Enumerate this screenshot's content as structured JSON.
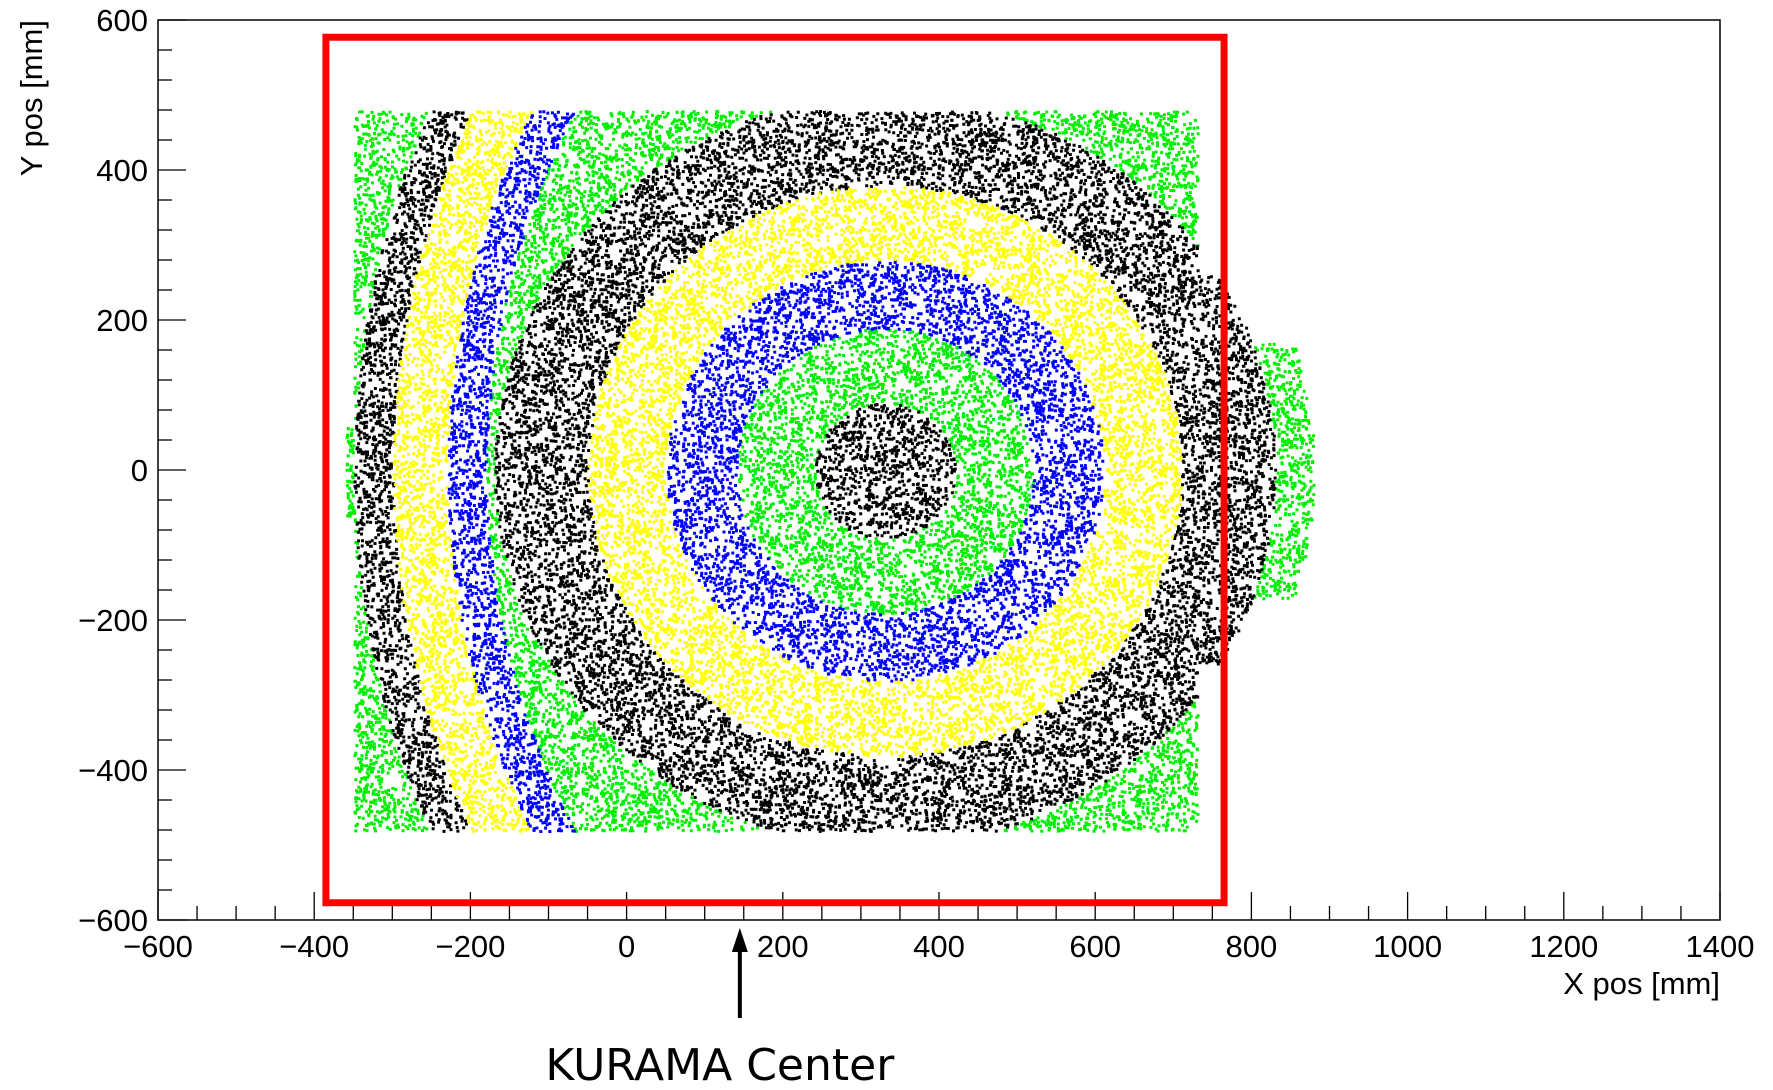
{
  "chart_data": {
    "type": "scatter",
    "title": "",
    "xlabel": "X pos [mm]",
    "ylabel": "Y pos [mm]",
    "xlim": [
      -600,
      1400
    ],
    "ylim": [
      -600,
      600
    ],
    "x_ticks": [
      "−600",
      "−400",
      "−200",
      "0",
      "200",
      "400",
      "600",
      "800",
      "1000",
      "1200",
      "1400"
    ],
    "y_ticks": [
      "−600",
      "−400",
      "−200",
      "0",
      "200",
      "400",
      "600"
    ],
    "grid": false,
    "colors": {
      "black": "#000000",
      "yellow": "#ffff00",
      "blue": "#0000ff",
      "green": "#00ee00",
      "red": "#ff0000"
    },
    "rings": {
      "center": [
        330,
        0
      ],
      "bands": [
        {
          "color": "black",
          "r_inner": 0,
          "r_outer": 90
        },
        {
          "color": "green",
          "r_inner": 90,
          "r_outer": 190
        },
        {
          "color": "blue",
          "r_inner": 190,
          "r_outer": 280
        },
        {
          "color": "yellow",
          "r_inner": 280,
          "r_outer": 380
        },
        {
          "color": "black",
          "r_inner": 380,
          "r_outer": 500
        },
        {
          "color": "green",
          "r_inner": 500,
          "r_outer": 700
        }
      ],
      "left_arcs_center": [
        900,
        0
      ],
      "left_arcs": [
        {
          "color": "blue",
          "r_inner": 1080,
          "r_outer": 1130
        },
        {
          "color": "yellow",
          "r_inner": 1130,
          "r_outer": 1200
        },
        {
          "color": "black",
          "r_inner": 1200,
          "r_outer": 1250
        },
        {
          "color": "green",
          "r_inner": 1250,
          "r_outer": 1300
        }
      ],
      "data_region": {
        "x": [
          -350,
          730
        ],
        "y": [
          -480,
          480
        ]
      }
    },
    "acceptance_box": {
      "x": [
        -385,
        765
      ],
      "y": [
        -577,
        577
      ],
      "color": "red"
    },
    "annotation": {
      "text": "KURAMA Center",
      "x": 145
    }
  }
}
